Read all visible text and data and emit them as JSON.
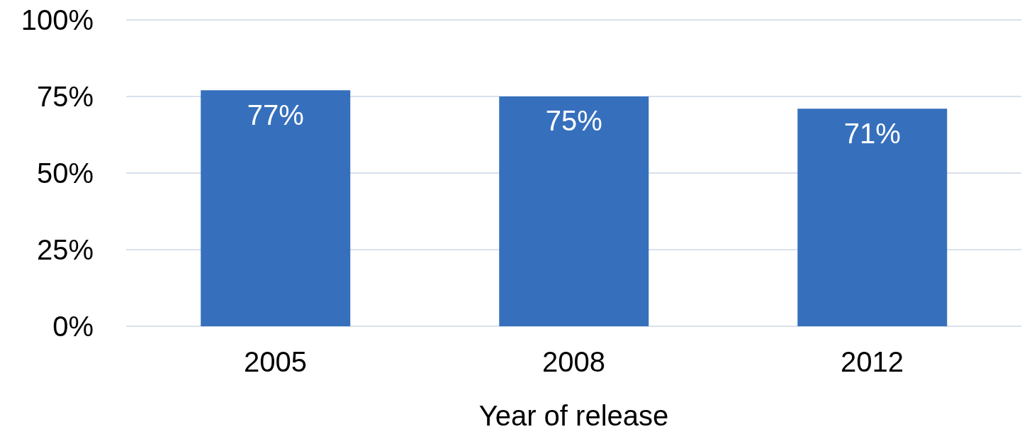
{
  "chart_data": {
    "type": "bar",
    "xlabel": "Year of release",
    "categories": [
      "2005",
      "2008",
      "2012"
    ],
    "values": [
      77,
      75,
      71
    ],
    "value_labels": [
      "77%",
      "75%",
      "71%"
    ],
    "color": "#3670bd",
    "ylim": [
      0,
      100
    ],
    "yticks": [
      {
        "value": 0,
        "label": "0%"
      },
      {
        "value": 25,
        "label": "25%"
      },
      {
        "value": 50,
        "label": "50%"
      },
      {
        "value": 75,
        "label": "75%"
      },
      {
        "value": 100,
        "label": "100%"
      }
    ],
    "grid": "y",
    "legend": false
  }
}
